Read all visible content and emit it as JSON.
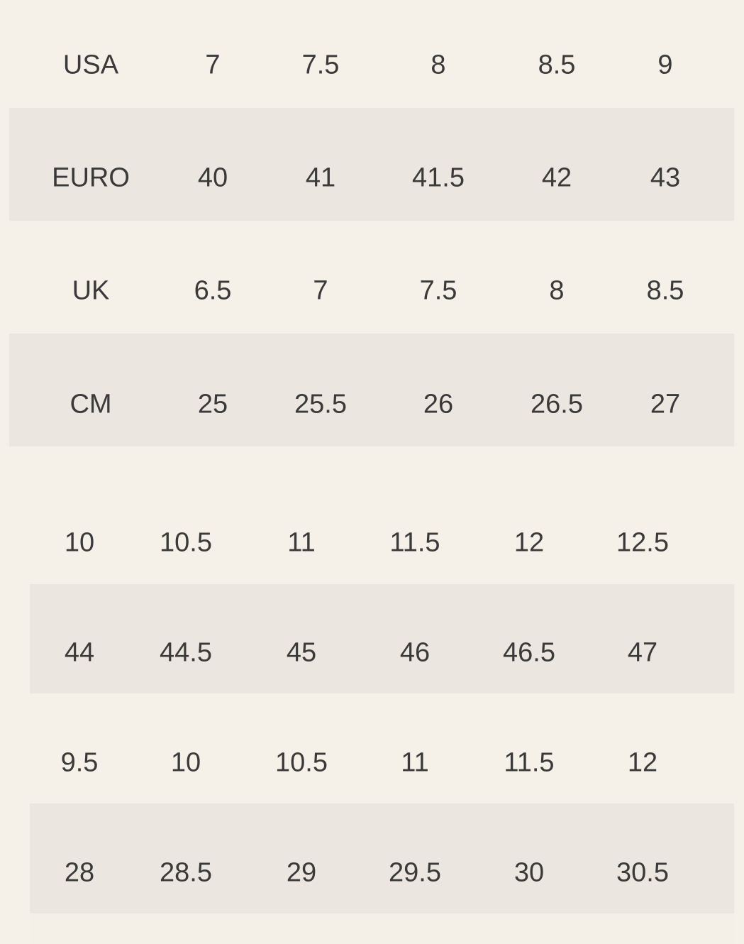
{
  "colors": {
    "background": "#f5f1e8",
    "shaded_row": "#ebe7e0",
    "text": "#3a3a3a"
  },
  "table_top": {
    "rows": [
      {
        "label": "USA",
        "values": [
          "7",
          "7.5",
          "8",
          "8.5",
          "9"
        ]
      },
      {
        "label": "EURO",
        "values": [
          "40",
          "41",
          "41.5",
          "42",
          "43"
        ]
      },
      {
        "label": "UK",
        "values": [
          "6.5",
          "7",
          "7.5",
          "8",
          "8.5"
        ]
      },
      {
        "label": "CM",
        "values": [
          "25",
          "25.5",
          "26",
          "26.5",
          "27"
        ]
      }
    ]
  },
  "table_bottom": {
    "rows": [
      {
        "values": [
          "10",
          "10.5",
          "11",
          "11.5",
          "12",
          "12.5"
        ]
      },
      {
        "values": [
          "44",
          "44.5",
          "45",
          "46",
          "46.5",
          "47"
        ]
      },
      {
        "values": [
          "9.5",
          "10",
          "10.5",
          "11",
          "11.5",
          "12"
        ]
      },
      {
        "values": [
          "28",
          "28.5",
          "29",
          "29.5",
          "30",
          "30.5"
        ]
      }
    ]
  }
}
